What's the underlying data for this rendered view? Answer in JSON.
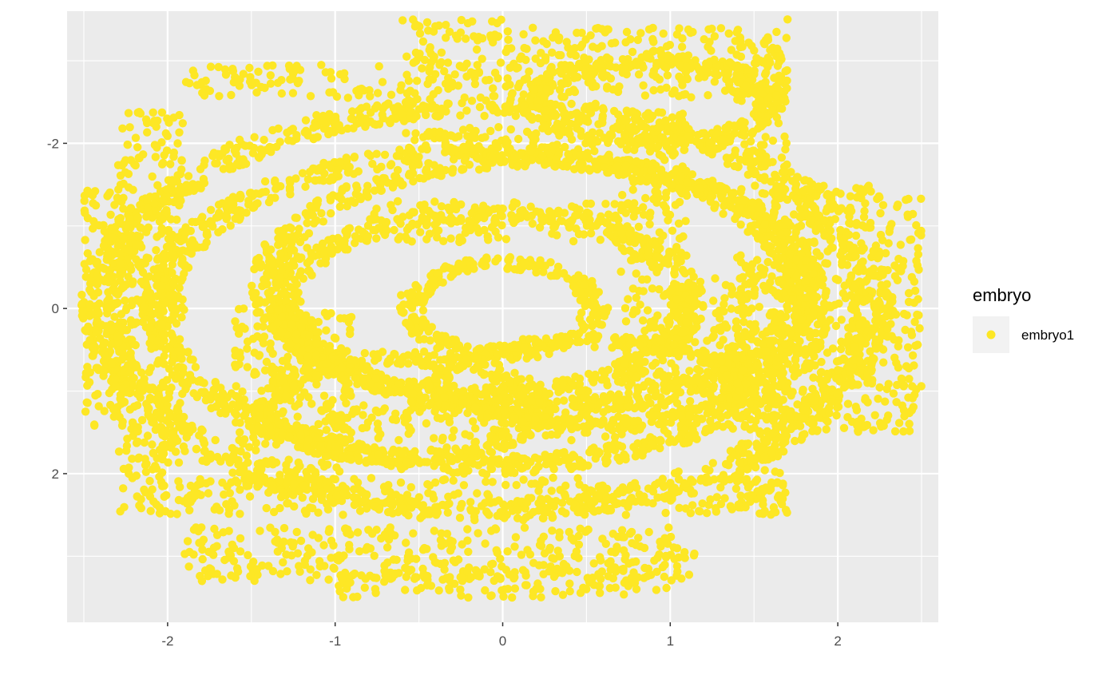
{
  "chart_data": {
    "type": "scatter",
    "title": "",
    "xlabel": "",
    "ylabel": "",
    "xlim": [
      -2.6,
      2.6
    ],
    "ylim": [
      -3.6,
      3.8
    ],
    "y_reversed": true,
    "x_ticks": [
      -2,
      -1,
      0,
      1,
      2
    ],
    "x_tick_labels": [
      "-2",
      "-1",
      "0",
      "1",
      "2"
    ],
    "y_ticks": [
      -2,
      0,
      2
    ],
    "y_tick_labels": [
      "-2",
      "0",
      "2"
    ],
    "grid": true,
    "legend": {
      "title": "embryo",
      "position": "right",
      "entries": [
        "embryo1"
      ]
    },
    "series": [
      {
        "name": "embryo1",
        "color": "#FDE725",
        "description": "dense spatial point cloud",
        "outliers": [
          {
            "x": 1.7,
            "y": -3.5
          },
          {
            "x": 2.38,
            "y": 0.85
          },
          {
            "x": 0.5,
            "y": 1.3
          },
          {
            "x": 0.69,
            "y": 1.31
          },
          {
            "x": -0.2,
            "y": 1.85
          }
        ],
        "blocks": [
          {
            "x": [
              -2.3,
              -1.9
            ],
            "y": [
              -2.4,
              2.5
            ]
          },
          {
            "x": [
              -2.5,
              -2.2
            ],
            "y": [
              -1.5,
              1.5
            ]
          },
          {
            "x": [
              -1.9,
              1.7
            ],
            "y": [
              -2.95,
              -2.55
            ]
          },
          {
            "x": [
              -0.6,
              0.0
            ],
            "y": [
              -3.5,
              -2.9
            ]
          },
          {
            "x": [
              0.0,
              1.7
            ],
            "y": [
              -3.4,
              -2.9
            ]
          },
          {
            "x": [
              1.4,
              1.7
            ],
            "y": [
              -3.3,
              2.5
            ]
          },
          {
            "x": [
              1.1,
              1.7
            ],
            "y": [
              -0.5,
              1.5
            ]
          },
          {
            "x": [
              1.7,
              2.5
            ],
            "y": [
              -1.5,
              1.5
            ]
          },
          {
            "x": [
              -1.9,
              1.7
            ],
            "y": [
              2.05,
              2.5
            ]
          },
          {
            "x": [
              -1.9,
              1.15
            ],
            "y": [
              2.65,
              3.3
            ]
          },
          {
            "x": [
              -1.0,
              1.0
            ],
            "y": [
              3.15,
              3.5
            ]
          },
          {
            "x": [
              -1.6,
              -0.9
            ],
            "y": [
              0.0,
              2.2
            ]
          },
          {
            "x": [
              -0.8,
              0.8
            ],
            "y": [
              -1.3,
              -0.8
            ]
          },
          {
            "x": [
              0.7,
              1.1
            ],
            "y": [
              -2.4,
              1.0
            ]
          },
          {
            "x": [
              -1.1,
              1.1
            ],
            "y": [
              1.1,
              1.6
            ]
          },
          {
            "x": [
              -0.6,
              0.5
            ],
            "y": [
              -2.2,
              -1.8
            ]
          }
        ],
        "rings": [
          {
            "cx": 0.0,
            "cy": 0.0,
            "rx": 0.55,
            "ry": 0.55,
            "w": 0.16
          },
          {
            "cx": -0.1,
            "cy": -0.05,
            "rx": 1.2,
            "ry": 1.1,
            "w": 0.2
          },
          {
            "cx": -0.1,
            "cy": 0.0,
            "rx": 1.95,
            "ry": 1.9,
            "w": 0.22
          },
          {
            "cx": -0.1,
            "cy": 0.0,
            "rx": 2.3,
            "ry": 2.45,
            "w": 0.25
          },
          {
            "cx": 0.2,
            "cy": -0.3,
            "rx": 1.6,
            "ry": 1.5,
            "w": 0.2
          },
          {
            "cx": 0.9,
            "cy": -2.5,
            "rx": 0.7,
            "ry": 0.5,
            "w": 0.18
          },
          {
            "cx": -0.6,
            "cy": 1.2,
            "rx": 0.8,
            "ry": 0.6,
            "w": 0.18
          },
          {
            "cx": 0.5,
            "cy": 0.9,
            "rx": 0.9,
            "ry": 0.5,
            "w": 0.15
          }
        ]
      }
    ]
  }
}
